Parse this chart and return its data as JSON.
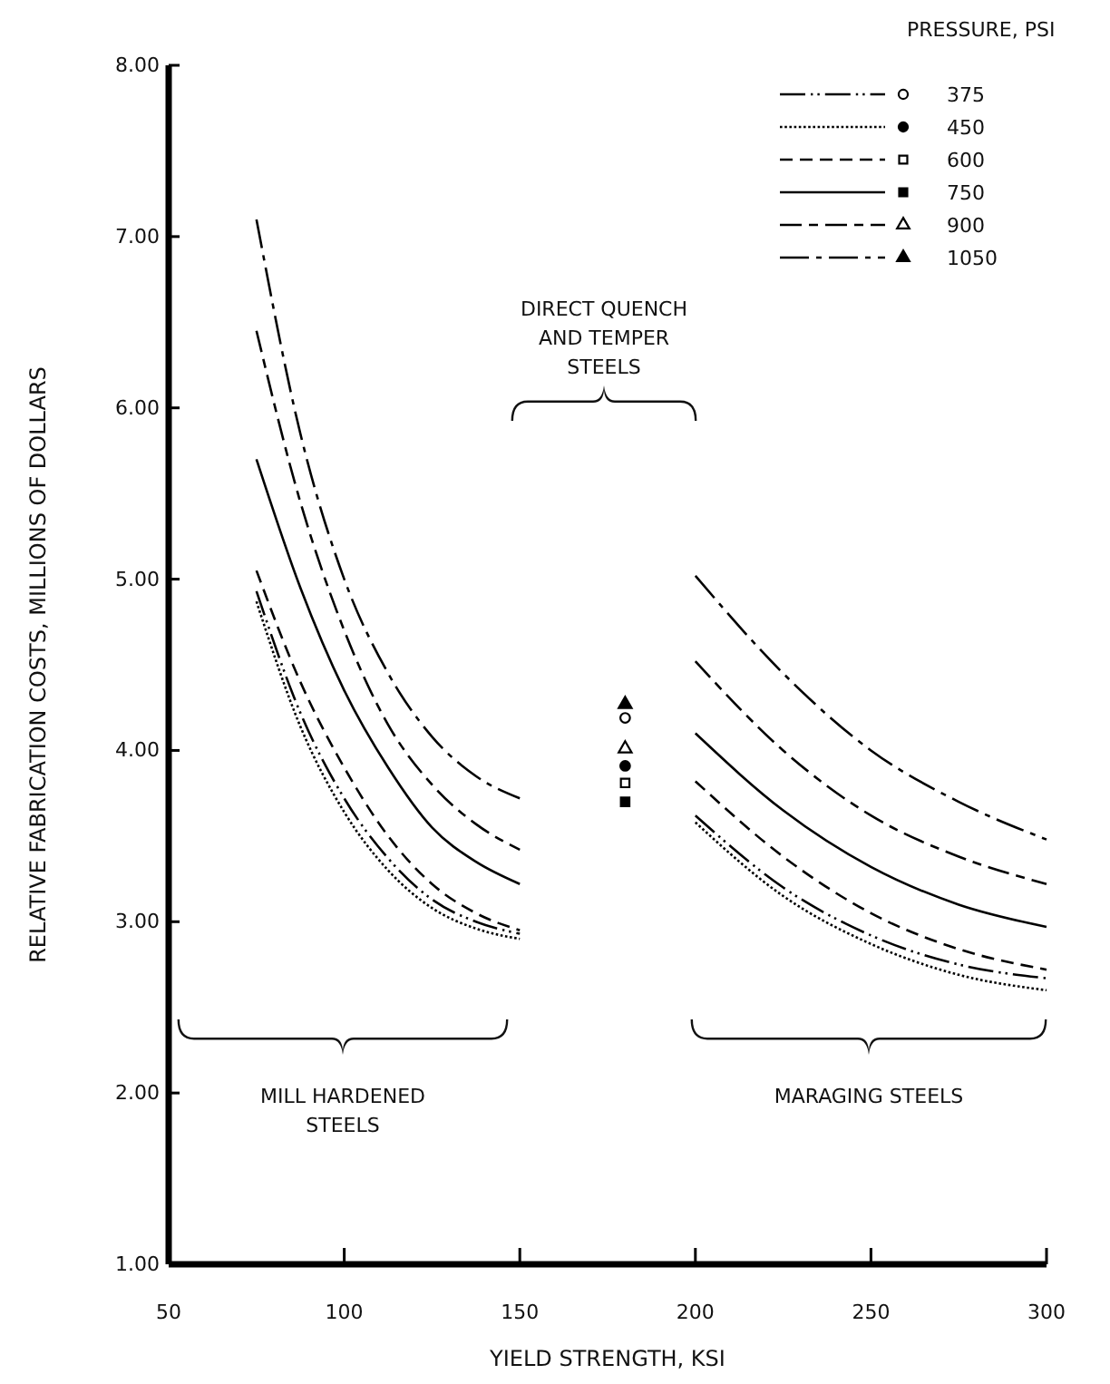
{
  "chart_data": {
    "type": "line",
    "xlabel": "YIELD STRENGTH, KSI",
    "ylabel": "RELATIVE FABRICATION COSTS, MILLIONS OF DOLLARS",
    "legend_title": "PRESSURE, PSI",
    "legend": "top right",
    "grid": false,
    "xlim": [
      50,
      300
    ],
    "xticks": [
      50,
      100,
      150,
      200,
      250,
      300
    ],
    "ylim": [
      1,
      8
    ],
    "yticks": [
      {
        "value": 1,
        "label": "1.00"
      },
      {
        "value": 2,
        "label": "2.00"
      },
      {
        "value": 3,
        "label": "3.00"
      },
      {
        "value": 4,
        "label": "4.00"
      },
      {
        "value": 5,
        "label": "5.00"
      },
      {
        "value": 6,
        "label": "6.00"
      },
      {
        "value": 7,
        "label": "7.00"
      },
      {
        "value": 8,
        "label": "8.00"
      }
    ],
    "series": [
      {
        "name": "375",
        "color": "#000000",
        "line_style": "dashdotdot",
        "x": [
          75,
          87.5,
          100,
          112.5,
          125,
          137.5,
          150,
          175,
          200,
          225,
          250,
          275,
          300
        ],
        "values": [
          4.93,
          4.22,
          3.72,
          3.37,
          3.13,
          3.0,
          2.93,
          null,
          3.62,
          3.2,
          2.92,
          2.75,
          2.67
        ]
      },
      {
        "type": "scatter",
        "color": "#000000",
        "marker": "circle-open",
        "x": [
          180
        ],
        "values": [
          4.19
        ]
      },
      {
        "name": "450",
        "color": "#000000",
        "line_style": "dotted",
        "x": [
          75,
          87.5,
          100,
          112.5,
          125,
          137.5,
          150,
          175,
          200,
          225,
          250,
          275,
          300
        ],
        "values": [
          4.87,
          4.14,
          3.64,
          3.3,
          3.08,
          2.96,
          2.9,
          null,
          3.58,
          3.15,
          2.87,
          2.69,
          2.6
        ]
      },
      {
        "type": "scatter",
        "color": "#000000",
        "marker": "circle",
        "x": [
          180
        ],
        "values": [
          3.91
        ]
      },
      {
        "name": "600",
        "color": "#000000",
        "line_style": "dashed",
        "x": [
          75,
          87.5,
          100,
          112.5,
          125,
          137.5,
          150,
          175,
          200,
          225,
          250,
          275,
          300
        ],
        "values": [
          5.05,
          4.4,
          3.9,
          3.5,
          3.22,
          3.05,
          2.95,
          null,
          3.82,
          3.38,
          3.05,
          2.84,
          2.72
        ]
      },
      {
        "type": "scatter",
        "color": "#000000",
        "marker": "square-open",
        "x": [
          180
        ],
        "values": [
          3.81
        ]
      },
      {
        "name": "750",
        "color": "#000000",
        "line_style": "solid",
        "x": [
          75,
          87.5,
          100,
          112.5,
          125,
          137.5,
          150,
          175,
          200,
          225,
          250,
          275,
          300
        ],
        "values": [
          5.7,
          4.95,
          4.35,
          3.9,
          3.55,
          3.35,
          3.22,
          null,
          4.1,
          3.65,
          3.32,
          3.1,
          2.97
        ]
      },
      {
        "type": "scatter",
        "color": "#000000",
        "marker": "square",
        "x": [
          180
        ],
        "values": [
          3.7
        ]
      },
      {
        "name": "900",
        "color": "#000000",
        "line_style": "longdash",
        "x": [
          75,
          87.5,
          100,
          112.5,
          125,
          137.5,
          150,
          175,
          200,
          225,
          250,
          275,
          300
        ],
        "values": [
          6.45,
          5.45,
          4.7,
          4.15,
          3.8,
          3.57,
          3.42,
          null,
          4.52,
          4.0,
          3.62,
          3.38,
          3.22
        ]
      },
      {
        "type": "scatter",
        "color": "#000000",
        "marker": "triangle-open",
        "x": [
          180
        ],
        "values": [
          4.01
        ]
      },
      {
        "name": "1050",
        "color": "#000000",
        "line_style": "dashdot",
        "x": [
          75,
          87.5,
          100,
          112.5,
          125,
          137.5,
          150,
          175,
          200,
          225,
          250,
          275,
          300
        ],
        "values": [
          7.1,
          5.85,
          5.0,
          4.45,
          4.08,
          3.85,
          3.72,
          null,
          5.02,
          4.45,
          4.0,
          3.7,
          3.48
        ]
      },
      {
        "type": "scatter",
        "color": "#000000",
        "marker": "triangle",
        "x": [
          180
        ],
        "values": [
          4.27
        ]
      }
    ],
    "annotations": [
      "MILL HARDENED\nSTEELS",
      "DIRECT QUENCH\nAND TEMPER\nSTEELS",
      "MARAGING STEELS"
    ]
  }
}
